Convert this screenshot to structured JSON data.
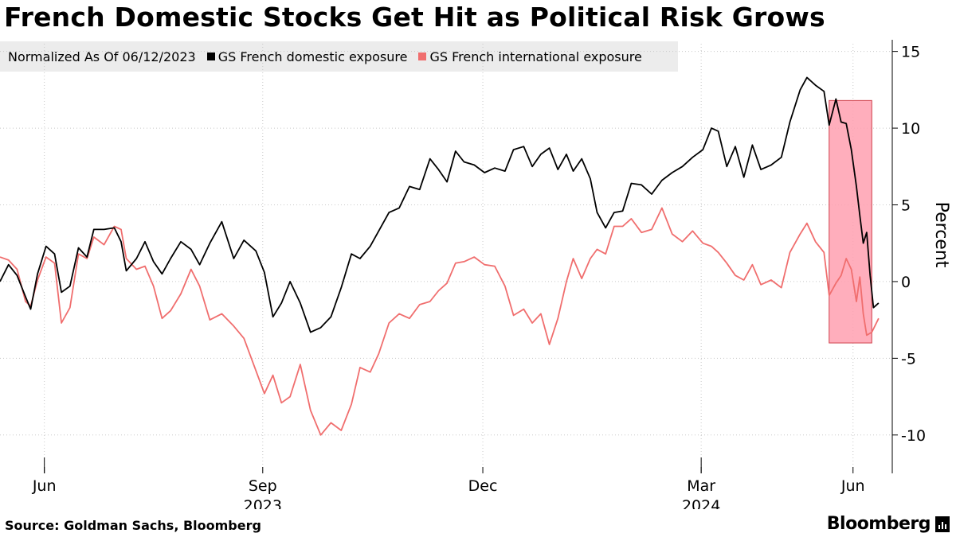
{
  "title": "French Domestic Stocks Get Hit as Political Risk Grows",
  "legend": {
    "label": "Normalized As Of 06/12/2023",
    "items": [
      {
        "name": "GS French domestic exposure",
        "color": "#000000"
      },
      {
        "name": "GS French international exposure",
        "color": "#f06e6e"
      }
    ]
  },
  "source": "Source: Goldman Sachs, Bloomberg",
  "brand": "Bloomberg",
  "chart_data": {
    "type": "line",
    "ylabel": "Percent",
    "ylim": [
      -12.5,
      15.5
    ],
    "yticks": [
      15,
      10,
      5,
      0,
      -5,
      -10
    ],
    "ytick_labels": [
      "15",
      "10",
      "5",
      "0",
      "-5",
      "-10"
    ],
    "xlim": [
      0,
      52.3
    ],
    "xticks": [
      {
        "x": 2.6,
        "label": "Jun",
        "year": "",
        "major": true
      },
      {
        "x": 15.4,
        "label": "Sep",
        "year": "2023",
        "major": false
      },
      {
        "x": 28.3,
        "label": "Dec",
        "year": "",
        "major": false
      },
      {
        "x": 41.1,
        "label": "Mar",
        "year": "2024",
        "major": true
      },
      {
        "x": 50.0,
        "label": "Jun",
        "year": "",
        "major": false
      }
    ],
    "highlight": {
      "x0": 48.6,
      "x1": 51.1,
      "y0": -4,
      "y1": 11.8,
      "color": "#ffa0b0"
    },
    "series": [
      {
        "name": "GS French domestic exposure",
        "color": "#000000",
        "points": [
          [
            0,
            0
          ],
          [
            0.5,
            1.1
          ],
          [
            1,
            0.4
          ],
          [
            1.5,
            -1
          ],
          [
            1.8,
            -1.8
          ],
          [
            2.2,
            0.5
          ],
          [
            2.7,
            2.3
          ],
          [
            3.2,
            1.8
          ],
          [
            3.6,
            -0.7
          ],
          [
            4.1,
            -0.3
          ],
          [
            4.6,
            2.2
          ],
          [
            5.1,
            1.6
          ],
          [
            5.5,
            3.4
          ],
          [
            6.1,
            3.4
          ],
          [
            6.7,
            3.5
          ],
          [
            7.1,
            2.6
          ],
          [
            7.4,
            0.7
          ],
          [
            8,
            1.5
          ],
          [
            8.5,
            2.6
          ],
          [
            9,
            1.3
          ],
          [
            9.5,
            0.5
          ],
          [
            10,
            1.5
          ],
          [
            10.6,
            2.6
          ],
          [
            11.2,
            2.1
          ],
          [
            11.7,
            1.1
          ],
          [
            12.3,
            2.5
          ],
          [
            13,
            3.9
          ],
          [
            13.7,
            1.5
          ],
          [
            14.3,
            2.7
          ],
          [
            15,
            2
          ],
          [
            15.5,
            0.6
          ],
          [
            16,
            -2.3
          ],
          [
            16.5,
            -1.4
          ],
          [
            17,
            0
          ],
          [
            17.6,
            -1.4
          ],
          [
            18.2,
            -3.3
          ],
          [
            18.8,
            -3
          ],
          [
            19.4,
            -2.3
          ],
          [
            20,
            -0.4
          ],
          [
            20.6,
            1.8
          ],
          [
            21.1,
            1.5
          ],
          [
            21.7,
            2.3
          ],
          [
            22.2,
            3.3
          ],
          [
            22.8,
            4.5
          ],
          [
            23.4,
            4.8
          ],
          [
            24,
            6.2
          ],
          [
            24.6,
            6
          ],
          [
            25.2,
            8
          ],
          [
            25.7,
            7.3
          ],
          [
            26.2,
            6.5
          ],
          [
            26.7,
            8.5
          ],
          [
            27.2,
            7.8
          ],
          [
            27.8,
            7.6
          ],
          [
            28.4,
            7.1
          ],
          [
            29,
            7.4
          ],
          [
            29.6,
            7.2
          ],
          [
            30.1,
            8.6
          ],
          [
            30.7,
            8.8
          ],
          [
            31.2,
            7.5
          ],
          [
            31.7,
            8.3
          ],
          [
            32.2,
            8.7
          ],
          [
            32.7,
            7.3
          ],
          [
            33.2,
            8.3
          ],
          [
            33.6,
            7.2
          ],
          [
            34.1,
            8
          ],
          [
            34.6,
            6.7
          ],
          [
            35,
            4.5
          ],
          [
            35.5,
            3.5
          ],
          [
            36,
            4.5
          ],
          [
            36.5,
            4.6
          ],
          [
            37,
            6.4
          ],
          [
            37.6,
            6.3
          ],
          [
            38.2,
            5.7
          ],
          [
            38.8,
            6.6
          ],
          [
            39.4,
            7.1
          ],
          [
            40,
            7.5
          ],
          [
            40.6,
            8.1
          ],
          [
            41.2,
            8.6
          ],
          [
            41.7,
            10
          ],
          [
            42.1,
            9.8
          ],
          [
            42.6,
            7.5
          ],
          [
            43.1,
            8.8
          ],
          [
            43.6,
            6.8
          ],
          [
            44.1,
            8.9
          ],
          [
            44.6,
            7.3
          ],
          [
            45.2,
            7.6
          ],
          [
            45.8,
            8.1
          ],
          [
            46.3,
            10.4
          ],
          [
            46.9,
            12.5
          ],
          [
            47.3,
            13.3
          ],
          [
            47.8,
            12.8
          ],
          [
            48.3,
            12.4
          ],
          [
            48.6,
            10.2
          ],
          [
            49,
            11.9
          ],
          [
            49.3,
            10.4
          ],
          [
            49.6,
            10.3
          ],
          [
            49.9,
            8.6
          ],
          [
            50.2,
            6.2
          ],
          [
            50.4,
            4.3
          ],
          [
            50.6,
            2.5
          ],
          [
            50.8,
            3.2
          ],
          [
            51,
            0.4
          ],
          [
            51.2,
            -1.7
          ],
          [
            51.5,
            -1.4
          ]
        ]
      },
      {
        "name": "GS French international exposure",
        "color": "#f06e6e",
        "points": [
          [
            0,
            1.6
          ],
          [
            0.5,
            1.4
          ],
          [
            1,
            0.8
          ],
          [
            1.5,
            -1.3
          ],
          [
            1.8,
            -1.6
          ],
          [
            2.2,
            0.1
          ],
          [
            2.7,
            1.6
          ],
          [
            3.2,
            1.2
          ],
          [
            3.6,
            -2.7
          ],
          [
            4.1,
            -1.7
          ],
          [
            4.6,
            1.8
          ],
          [
            5.1,
            1.5
          ],
          [
            5.5,
            2.9
          ],
          [
            6.1,
            2.4
          ],
          [
            6.7,
            3.6
          ],
          [
            7.1,
            3.4
          ],
          [
            7.4,
            1.5
          ],
          [
            8,
            0.8
          ],
          [
            8.5,
            1
          ],
          [
            9,
            -0.3
          ],
          [
            9.5,
            -2.4
          ],
          [
            10,
            -1.9
          ],
          [
            10.6,
            -0.8
          ],
          [
            11.2,
            0.8
          ],
          [
            11.7,
            -0.3
          ],
          [
            12.3,
            -2.5
          ],
          [
            13,
            -2.1
          ],
          [
            13.7,
            -2.9
          ],
          [
            14.3,
            -3.7
          ],
          [
            15,
            -5.8
          ],
          [
            15.5,
            -7.3
          ],
          [
            16,
            -6.1
          ],
          [
            16.5,
            -7.9
          ],
          [
            17,
            -7.5
          ],
          [
            17.6,
            -5.4
          ],
          [
            18.2,
            -8.4
          ],
          [
            18.8,
            -10
          ],
          [
            19.4,
            -9.2
          ],
          [
            20,
            -9.7
          ],
          [
            20.6,
            -8
          ],
          [
            21.1,
            -5.6
          ],
          [
            21.7,
            -5.9
          ],
          [
            22.2,
            -4.7
          ],
          [
            22.8,
            -2.7
          ],
          [
            23.4,
            -2.1
          ],
          [
            24,
            -2.4
          ],
          [
            24.6,
            -1.5
          ],
          [
            25.2,
            -1.3
          ],
          [
            25.7,
            -0.6
          ],
          [
            26.2,
            -0.1
          ],
          [
            26.7,
            1.2
          ],
          [
            27.2,
            1.3
          ],
          [
            27.8,
            1.6
          ],
          [
            28.4,
            1.1
          ],
          [
            29,
            1
          ],
          [
            29.6,
            -0.3
          ],
          [
            30.1,
            -2.2
          ],
          [
            30.7,
            -1.8
          ],
          [
            31.2,
            -2.7
          ],
          [
            31.7,
            -2.1
          ],
          [
            32.2,
            -4.1
          ],
          [
            32.7,
            -2.4
          ],
          [
            33.2,
            0
          ],
          [
            33.6,
            1.5
          ],
          [
            34.1,
            0.2
          ],
          [
            34.6,
            1.5
          ],
          [
            35,
            2.1
          ],
          [
            35.5,
            1.8
          ],
          [
            36,
            3.6
          ],
          [
            36.5,
            3.6
          ],
          [
            37,
            4.1
          ],
          [
            37.6,
            3.2
          ],
          [
            38.2,
            3.4
          ],
          [
            38.8,
            4.8
          ],
          [
            39.4,
            3.1
          ],
          [
            40,
            2.6
          ],
          [
            40.6,
            3.3
          ],
          [
            41.2,
            2.5
          ],
          [
            41.7,
            2.3
          ],
          [
            42.1,
            1.9
          ],
          [
            42.6,
            1.2
          ],
          [
            43.1,
            0.4
          ],
          [
            43.6,
            0.1
          ],
          [
            44.1,
            1.1
          ],
          [
            44.6,
            -0.2
          ],
          [
            45.2,
            0.1
          ],
          [
            45.8,
            -0.4
          ],
          [
            46.3,
            1.9
          ],
          [
            46.9,
            3.1
          ],
          [
            47.3,
            3.8
          ],
          [
            47.8,
            2.6
          ],
          [
            48.3,
            1.9
          ],
          [
            48.6,
            -0.9
          ],
          [
            49,
            -0.1
          ],
          [
            49.3,
            0.4
          ],
          [
            49.6,
            1.5
          ],
          [
            49.9,
            0.8
          ],
          [
            50.2,
            -1.3
          ],
          [
            50.4,
            0.3
          ],
          [
            50.6,
            -2.1
          ],
          [
            50.8,
            -3.5
          ],
          [
            51.1,
            -3.3
          ],
          [
            51.5,
            -2.4
          ]
        ]
      }
    ]
  }
}
